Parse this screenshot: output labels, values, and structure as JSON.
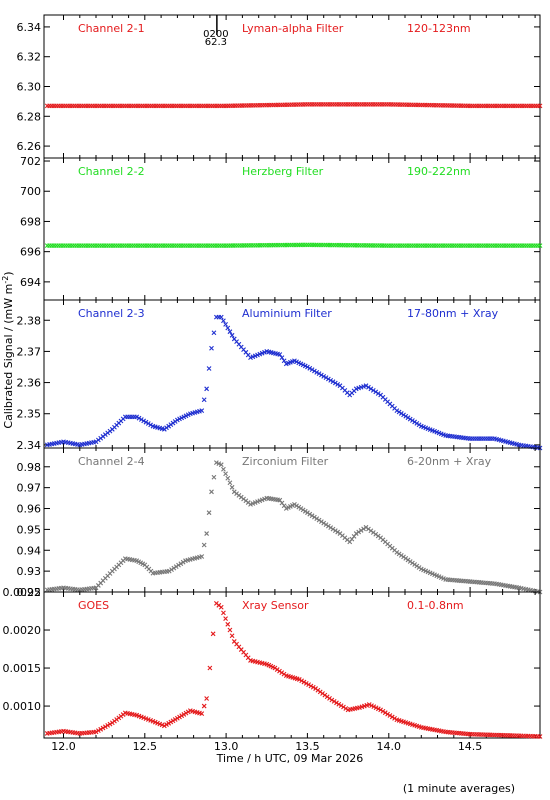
{
  "chart_data": [
    {
      "type": "scatter",
      "channel": "Channel 2-1",
      "filter": "Lyman-alpha Filter",
      "band": "120-123nm",
      "color": "#e41a1c",
      "ylim": [
        6.252,
        6.348
      ],
      "yticks": [
        "6.26",
        "6.28",
        "6.30",
        "6.32",
        "6.34"
      ],
      "marker_label_top": "0200",
      "marker_label_bottom": "62.3",
      "marker_x": 12.9,
      "series": [
        {
          "points": [
            [
              11.9,
              6.287
            ],
            [
              12.5,
              6.287
            ],
            [
              13.0,
              6.287
            ],
            [
              13.5,
              6.288
            ],
            [
              14.0,
              6.288
            ],
            [
              14.5,
              6.287
            ],
            [
              14.93,
              6.287
            ]
          ]
        }
      ]
    },
    {
      "type": "scatter",
      "channel": "Channel 2-2",
      "filter": "Herzberg Filter",
      "band": "190-222nm",
      "color": "#22dd22",
      "ylim": [
        692.8,
        702.2
      ],
      "yticks": [
        "694",
        "696",
        "698",
        "700",
        "702"
      ],
      "series": [
        {
          "points": [
            [
              11.9,
              696.4
            ],
            [
              12.5,
              696.4
            ],
            [
              13.0,
              696.4
            ],
            [
              13.5,
              696.45
            ],
            [
              14.0,
              696.4
            ],
            [
              14.5,
              696.4
            ],
            [
              14.93,
              696.4
            ]
          ]
        }
      ]
    },
    {
      "type": "scatter",
      "channel": "Channel 2-3",
      "filter": "Aluminium Filter",
      "band": "17-80nm + Xray",
      "color": "#1f2fd0",
      "ylim": [
        2.339,
        2.3865
      ],
      "yticks": [
        "2.34",
        "2.35",
        "2.36",
        "2.37",
        "2.38"
      ],
      "series": [
        {
          "points": [
            [
              11.9,
              2.34
            ],
            [
              12.0,
              2.341
            ],
            [
              12.1,
              2.34
            ],
            [
              12.2,
              2.341
            ],
            [
              12.3,
              2.345
            ],
            [
              12.38,
              2.349
            ],
            [
              12.45,
              2.349
            ],
            [
              12.55,
              2.346
            ],
            [
              12.62,
              2.345
            ],
            [
              12.7,
              2.348
            ],
            [
              12.78,
              2.35
            ],
            [
              12.85,
              2.351
            ],
            [
              12.88,
              2.358
            ],
            [
              12.91,
              2.371
            ],
            [
              12.94,
              2.381
            ],
            [
              12.97,
              2.381
            ],
            [
              13.05,
              2.374
            ],
            [
              13.15,
              2.368
            ],
            [
              13.25,
              2.37
            ],
            [
              13.33,
              2.369
            ],
            [
              13.37,
              2.366
            ],
            [
              13.42,
              2.367
            ],
            [
              13.5,
              2.365
            ],
            [
              13.6,
              2.362
            ],
            [
              13.7,
              2.359
            ],
            [
              13.76,
              2.356
            ],
            [
              13.8,
              2.358
            ],
            [
              13.86,
              2.359
            ],
            [
              13.95,
              2.356
            ],
            [
              14.05,
              2.351
            ],
            [
              14.2,
              2.346
            ],
            [
              14.35,
              2.343
            ],
            [
              14.5,
              2.342
            ],
            [
              14.65,
              2.342
            ],
            [
              14.8,
              2.34
            ],
            [
              14.93,
              2.339
            ]
          ]
        }
      ]
    },
    {
      "type": "scatter",
      "channel": "Channel 2-4",
      "filter": "Zirconium Filter",
      "band": "6-20nm + Xray",
      "color": "#777777",
      "ylim": [
        0.92,
        0.989
      ],
      "yticks": [
        "0.92",
        "0.93",
        "0.94",
        "0.95",
        "0.96",
        "0.97",
        "0.98"
      ],
      "series": [
        {
          "points": [
            [
              11.9,
              0.921
            ],
            [
              12.0,
              0.922
            ],
            [
              12.1,
              0.921
            ],
            [
              12.2,
              0.922
            ],
            [
              12.3,
              0.93
            ],
            [
              12.38,
              0.936
            ],
            [
              12.45,
              0.935
            ],
            [
              12.5,
              0.933
            ],
            [
              12.55,
              0.929
            ],
            [
              12.65,
              0.93
            ],
            [
              12.75,
              0.935
            ],
            [
              12.85,
              0.937
            ],
            [
              12.88,
              0.948
            ],
            [
              12.91,
              0.968
            ],
            [
              12.94,
              0.982
            ],
            [
              12.97,
              0.981
            ],
            [
              13.05,
              0.968
            ],
            [
              13.15,
              0.962
            ],
            [
              13.25,
              0.965
            ],
            [
              13.33,
              0.964
            ],
            [
              13.37,
              0.96
            ],
            [
              13.42,
              0.962
            ],
            [
              13.5,
              0.958
            ],
            [
              13.6,
              0.953
            ],
            [
              13.7,
              0.948
            ],
            [
              13.76,
              0.944
            ],
            [
              13.8,
              0.948
            ],
            [
              13.86,
              0.951
            ],
            [
              13.95,
              0.946
            ],
            [
              14.05,
              0.939
            ],
            [
              14.2,
              0.931
            ],
            [
              14.35,
              0.926
            ],
            [
              14.5,
              0.925
            ],
            [
              14.65,
              0.924
            ],
            [
              14.8,
              0.922
            ],
            [
              14.93,
              0.92
            ]
          ]
        }
      ]
    },
    {
      "type": "scatter",
      "channel": "GOES",
      "filter": "Xray Sensor",
      "band": "0.1-0.8nm",
      "color": "#e41a1c",
      "ylim": [
        0.00058,
        0.0025
      ],
      "yticks": [
        "0.0010",
        "0.0015",
        "0.0020",
        "0.0025"
      ],
      "series": [
        {
          "points": [
            [
              11.9,
              0.00064
            ],
            [
              12.0,
              0.00067
            ],
            [
              12.1,
              0.00064
            ],
            [
              12.2,
              0.00066
            ],
            [
              12.3,
              0.00078
            ],
            [
              12.38,
              0.00091
            ],
            [
              12.45,
              0.00088
            ],
            [
              12.55,
              0.0008
            ],
            [
              12.62,
              0.00074
            ],
            [
              12.7,
              0.00084
            ],
            [
              12.78,
              0.00094
            ],
            [
              12.85,
              0.0009
            ],
            [
              12.88,
              0.0011
            ],
            [
              12.9,
              0.0015
            ],
            [
              12.92,
              0.00195
            ],
            [
              12.94,
              0.00235
            ],
            [
              12.97,
              0.0023
            ],
            [
              13.05,
              0.00185
            ],
            [
              13.15,
              0.0016
            ],
            [
              13.25,
              0.00155
            ],
            [
              13.3,
              0.0015
            ],
            [
              13.37,
              0.0014
            ],
            [
              13.45,
              0.00135
            ],
            [
              13.55,
              0.00123
            ],
            [
              13.65,
              0.00108
            ],
            [
              13.75,
              0.00095
            ],
            [
              13.82,
              0.00098
            ],
            [
              13.88,
              0.00102
            ],
            [
              13.95,
              0.00095
            ],
            [
              14.05,
              0.00082
            ],
            [
              14.2,
              0.00072
            ],
            [
              14.35,
              0.00066
            ],
            [
              14.5,
              0.00063
            ],
            [
              14.65,
              0.00062
            ],
            [
              14.8,
              0.00061
            ],
            [
              14.93,
              0.0006
            ]
          ]
        }
      ]
    }
  ],
  "axes": {
    "xlim": [
      11.88,
      14.93
    ],
    "xticks": [
      "12.0",
      "12.5",
      "13.0",
      "13.5",
      "14.0",
      "14.5"
    ],
    "xlabel": "Time / h UTC, 09 Mar 2026",
    "ylabel_prefix": "Calibrated Signal / (mW m",
    "ylabel_sup": "-2",
    "ylabel_suffix": ")"
  },
  "footer": {
    "note": "(1 minute averages)"
  }
}
